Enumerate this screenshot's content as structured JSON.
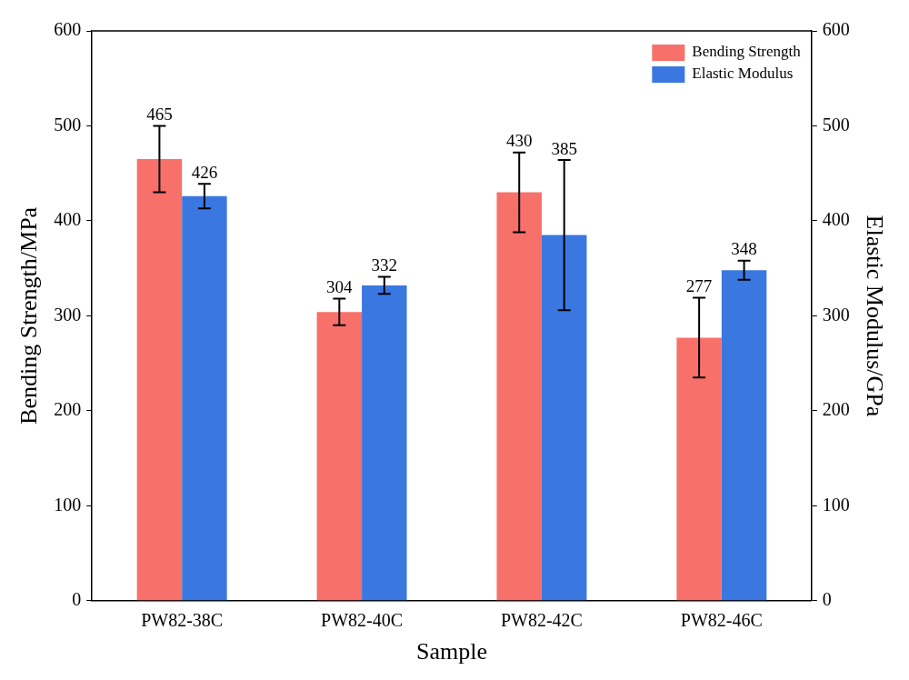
{
  "chart_data": {
    "type": "bar",
    "x_label": "Sample",
    "y_label": "Bending Strength/MPa",
    "y2_label": "Elastic Modulus/GPa",
    "categories": [
      "PW82-38C",
      "PW82-40C",
      "PW82-42C",
      "PW82-46C"
    ],
    "series": [
      {
        "name": "Bending Strength",
        "color": "#f8706a",
        "values": [
          465,
          304,
          430,
          277
        ],
        "errors": [
          35,
          14,
          42,
          42
        ]
      },
      {
        "name": "Elastic Modulus",
        "color": "#3a77e1",
        "values": [
          426,
          332,
          385,
          348
        ],
        "errors": [
          13,
          9,
          79,
          10
        ],
        "axis": "y2"
      }
    ],
    "ylim": [
      0,
      600
    ],
    "yticks": [
      0,
      100,
      200,
      300,
      400,
      500,
      600
    ],
    "y2lim": [
      0,
      600
    ],
    "y2ticks": [
      0,
      100,
      200,
      300,
      400,
      500,
      600
    ],
    "grid": false,
    "legend": "upper right",
    "data_labels": true
  }
}
